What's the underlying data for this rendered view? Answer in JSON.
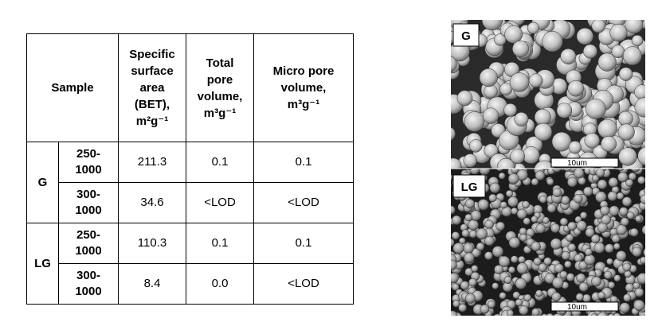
{
  "table": {
    "header": [
      "Sample",
      "Specific surface area (BET), m²g⁻¹",
      "Total pore volume, m³g⁻¹",
      "Micro pore volume, m³g⁻¹"
    ],
    "groups": [
      {
        "label": "G",
        "rows": [
          [
            "250-1000",
            "211.3",
            "0.1",
            "0.1"
          ],
          [
            "300-1000",
            "34.6",
            "<LOD",
            "<LOD"
          ]
        ]
      },
      {
        "label": "LG",
        "rows": [
          [
            "250-1000",
            "110.3",
            "0.1",
            "0.1"
          ],
          [
            "300-1000",
            "8.4",
            "0.0",
            "<LOD"
          ]
        ]
      }
    ]
  },
  "images": [
    {
      "label": "G",
      "scale": "10um"
    },
    {
      "label": "LG",
      "scale": "10um"
    }
  ]
}
